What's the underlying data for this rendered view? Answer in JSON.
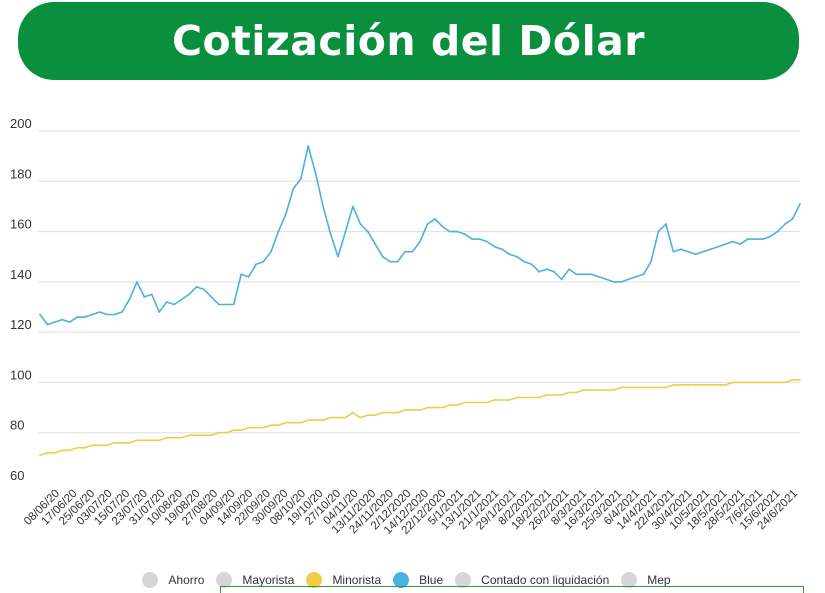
{
  "header": {
    "title": "Cotización del Dólar",
    "color": "#0a8f3e"
  },
  "legend": {
    "items": [
      {
        "label": "Ahorro",
        "color": "#d6d6d6"
      },
      {
        "label": "Mayorista",
        "color": "#d6d6d6"
      },
      {
        "label": "Minorista",
        "color": "#f0cd45"
      },
      {
        "label": "Blue",
        "color": "#4ab2e2"
      },
      {
        "label": "Contado con liquidación",
        "color": "#d6d6d6"
      },
      {
        "label": "Mep",
        "color": "#d6d6d6"
      }
    ]
  },
  "chart_data": {
    "type": "line",
    "title": "",
    "xlabel": "",
    "ylabel": "",
    "ylim": [
      60,
      200
    ],
    "yticks": [
      60,
      80,
      100,
      120,
      140,
      160,
      180,
      200
    ],
    "grid": true,
    "legend_position": "bottom",
    "x_tick_labels": [
      "08/06/20",
      "17/06/20",
      "25/06/20",
      "03/07/20",
      "15/07/20",
      "23/07/20",
      "31/07/20",
      "10/08/20",
      "19/08/20",
      "27/08/20",
      "04/09/20",
      "14/09/20",
      "22/09/20",
      "30/09/20",
      "08/10/20",
      "19/10/20",
      "27/10/20",
      "04/11/20",
      "13/11/2020",
      "24/11/2020",
      "2/12/2020",
      "14/12/2020",
      "22/12/2020",
      "5/1/2021",
      "13/1/2021",
      "21/1/2021",
      "29/1/2021",
      "8/2/2021",
      "18/2/2021",
      "26/2/2021",
      "8/3/2021",
      "16/3/2021",
      "25/3/2021",
      "6/4/2021",
      "14/4/2021",
      "22/4/2021",
      "30/4/2021",
      "10/5/2021",
      "18/5/2021",
      "28/5/2021",
      "7/6/2021",
      "15/6/2021",
      "24/6/2021"
    ],
    "series": [
      {
        "name": "Blue",
        "color": "#4ab2e2",
        "values": [
          127,
          123,
          124,
          125,
          124,
          126,
          126,
          127,
          128,
          127,
          127,
          128,
          133,
          140,
          134,
          135,
          128,
          132,
          131,
          133,
          135,
          138,
          137,
          134,
          131,
          131,
          131,
          143,
          142,
          147,
          148,
          152,
          160,
          167,
          177,
          181,
          194,
          183,
          170,
          159,
          150,
          160,
          170,
          163,
          160,
          155,
          150,
          148,
          148,
          152,
          152,
          156,
          163,
          165,
          162,
          160,
          160,
          159,
          157,
          157,
          156,
          154,
          153,
          151,
          150,
          148,
          147,
          144,
          145,
          144,
          141,
          145,
          143,
          143,
          143,
          142,
          141,
          140,
          140,
          141,
          142,
          143,
          148,
          160,
          163,
          152,
          153,
          152,
          151,
          152,
          153,
          154,
          155,
          156,
          155,
          157,
          157,
          157,
          158,
          160,
          163,
          165,
          171
        ]
      },
      {
        "name": "Minorista",
        "color": "#f0cd45",
        "values": [
          71,
          72,
          72,
          73,
          73,
          74,
          74,
          75,
          75,
          75,
          76,
          76,
          76,
          77,
          77,
          77,
          77,
          78,
          78,
          78,
          79,
          79,
          79,
          79,
          80,
          80,
          81,
          81,
          82,
          82,
          82,
          83,
          83,
          84,
          84,
          84,
          85,
          85,
          85,
          86,
          86,
          86,
          88,
          86,
          87,
          87,
          88,
          88,
          88,
          89,
          89,
          89,
          90,
          90,
          90,
          91,
          91,
          92,
          92,
          92,
          92,
          93,
          93,
          93,
          94,
          94,
          94,
          94,
          95,
          95,
          95,
          96,
          96,
          97,
          97,
          97,
          97,
          97,
          98,
          98,
          98,
          98,
          98,
          98,
          98,
          99,
          99,
          99,
          99,
          99,
          99,
          99,
          99,
          100,
          100,
          100,
          100,
          100,
          100,
          100,
          100,
          101,
          101
        ]
      }
    ]
  }
}
